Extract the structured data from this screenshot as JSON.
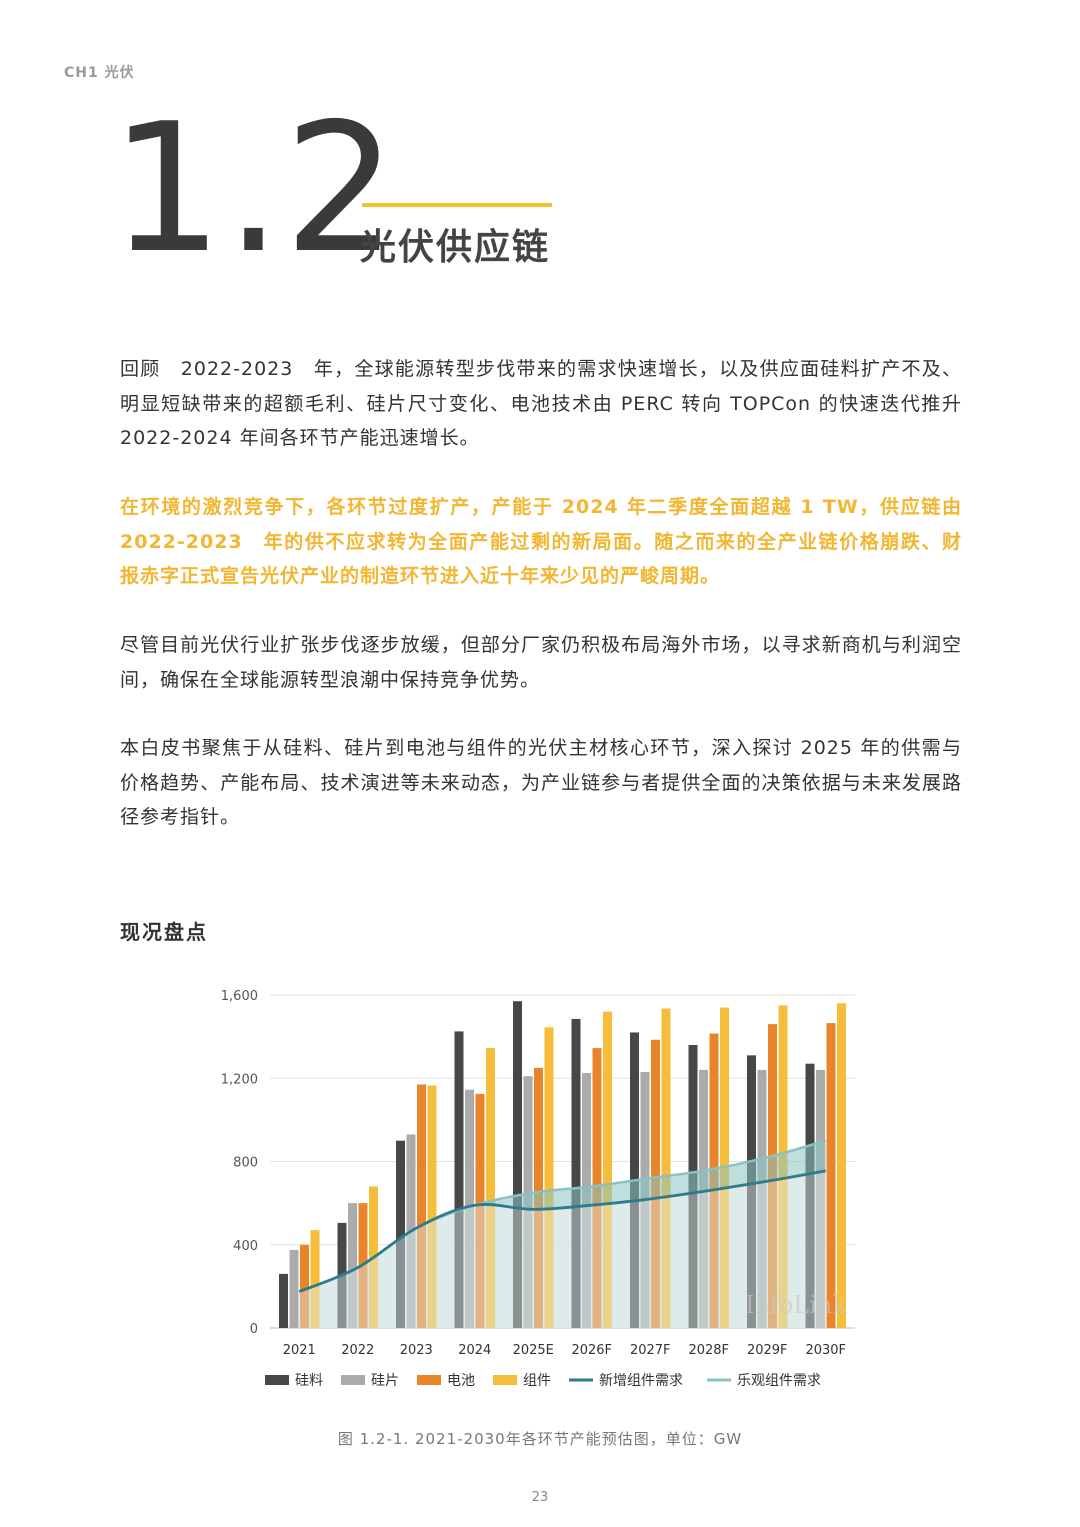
{
  "header": {
    "label": "CH1  光伏"
  },
  "section": {
    "number": "1.2",
    "title": "光伏供应链"
  },
  "paragraphs": [
    "回顾　2022-2023　年，全球能源转型步伐带来的需求快速增长，以及供应面硅料扩产不及、明显短缺带来的超额毛利、硅片尺寸变化、电池技术由 PERC 转向 TOPCon 的快速迭代推升 2022-2024 年间各环节产能迅速增长。",
    "在环境的激烈竞争下，各环节过度扩产，产能于 2024 年二季度全面超越 1 TW，供应链由　2022-2023　年的供不应求转为全面产能过剩的新局面。随之而来的全产业链价格崩跌、财报赤字正式宣告光伏产业的制造环节进入近十年来少见的严峻周期。",
    "尽管目前光伏行业扩张步伐逐步放缓，但部分厂家仍积极布局海外市场，以寻求新商机与利润空间，确保在全球能源转型浪潮中保持竞争优势。",
    "本白皮书聚焦于从硅料、硅片到电池与组件的光伏主材核心环节，深入探讨 2025 年的供需与价格趋势、产能布局、技术演进等未来动态，为产业链参与者提供全面的决策依据与未来发展路径参考指针。"
  ],
  "subheading": "现况盘点",
  "chart_data": {
    "type": "bar",
    "categories": [
      "2021",
      "2022",
      "2023",
      "2024",
      "2025E",
      "2026F",
      "2027F",
      "2028F",
      "2029F",
      "2030F"
    ],
    "ylim": [
      0,
      1600
    ],
    "yticks": [
      0,
      400,
      800,
      1200,
      1600
    ],
    "ytick_labels": [
      "0",
      "400",
      "800",
      "1,200",
      "1,600"
    ],
    "grid": true,
    "legend_position": "bottom",
    "watermark": "InfoLink",
    "series": [
      {
        "name": "硅料",
        "kind": "bar",
        "color": "#474747",
        "values": [
          260,
          505,
          900,
          1425,
          1570,
          1485,
          1420,
          1360,
          1310,
          1270
        ]
      },
      {
        "name": "硅片",
        "kind": "bar",
        "color": "#ababab",
        "values": [
          375,
          600,
          930,
          1145,
          1210,
          1225,
          1230,
          1240,
          1240,
          1240
        ]
      },
      {
        "name": "电池",
        "kind": "bar",
        "color": "#e8852b",
        "values": [
          400,
          600,
          1170,
          1125,
          1250,
          1345,
          1385,
          1415,
          1460,
          1465
        ]
      },
      {
        "name": "组件",
        "kind": "bar",
        "color": "#f5bd3a",
        "values": [
          470,
          680,
          1165,
          1345,
          1445,
          1520,
          1535,
          1540,
          1550,
          1560
        ]
      },
      {
        "name": "新增组件需求",
        "kind": "line",
        "color": "#2e7b8c",
        "values": [
          175,
          290,
          480,
          590,
          570,
          590,
          620,
          660,
          705,
          755
        ]
      },
      {
        "name": "乐观组件需求",
        "kind": "area",
        "color": "#8ac2c2",
        "values": [
          175,
          290,
          480,
          590,
          650,
          680,
          720,
          760,
          820,
          900
        ]
      }
    ]
  },
  "caption": "图 1.2-1. 2021-2030年各环节产能预估图，单位：GW",
  "page_number": "23"
}
